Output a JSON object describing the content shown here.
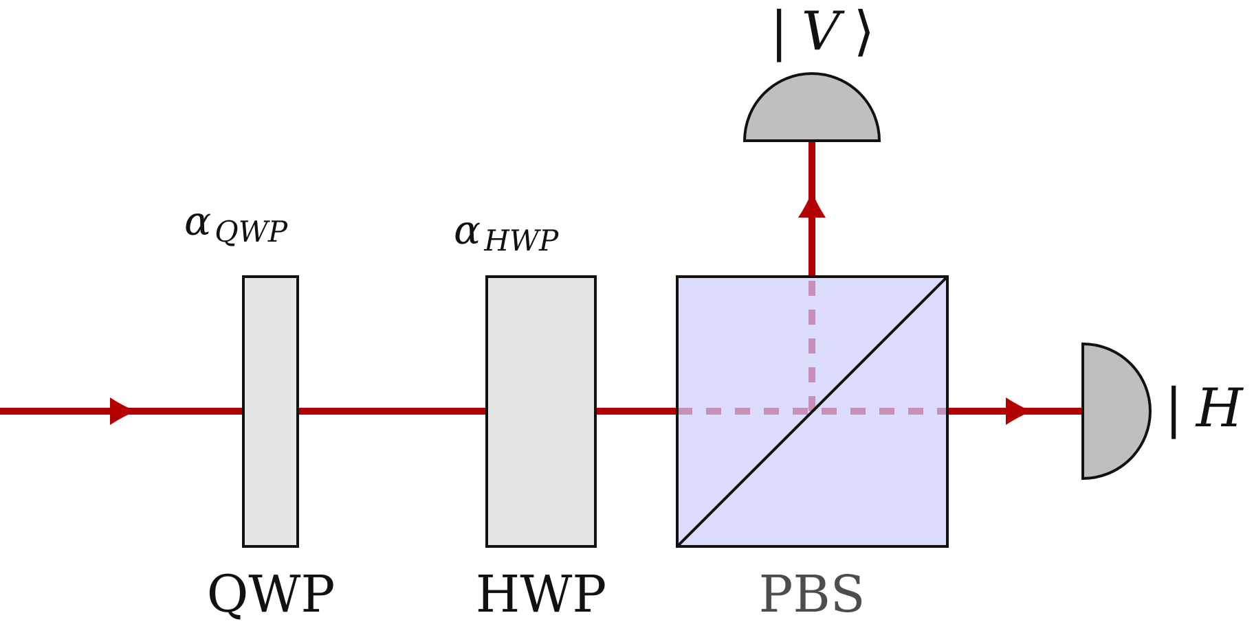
{
  "colors": {
    "beam": "#b30000",
    "beam_internal": "#c890b8",
    "waveplate_fill": "#e6e6e6",
    "pbs_fill": "#dcdcfc",
    "detector_fill": "#bfbfbf",
    "stroke": "#111111",
    "pbs_label": "#4d4d4d"
  },
  "components": {
    "qwp": {
      "label": "QWP",
      "angle_symbol": "α",
      "angle_subscript": "QWP"
    },
    "hwp": {
      "label": "HWP",
      "angle_symbol": "α",
      "angle_subscript": "HWP"
    },
    "pbs": {
      "label": "PBS"
    }
  },
  "detectors": {
    "vertical": {
      "ket_open": "|",
      "state": "V",
      "ket_close": "⟩"
    },
    "horizontal": {
      "ket_open": "|",
      "state": "H",
      "ket_close": "⟩"
    }
  }
}
